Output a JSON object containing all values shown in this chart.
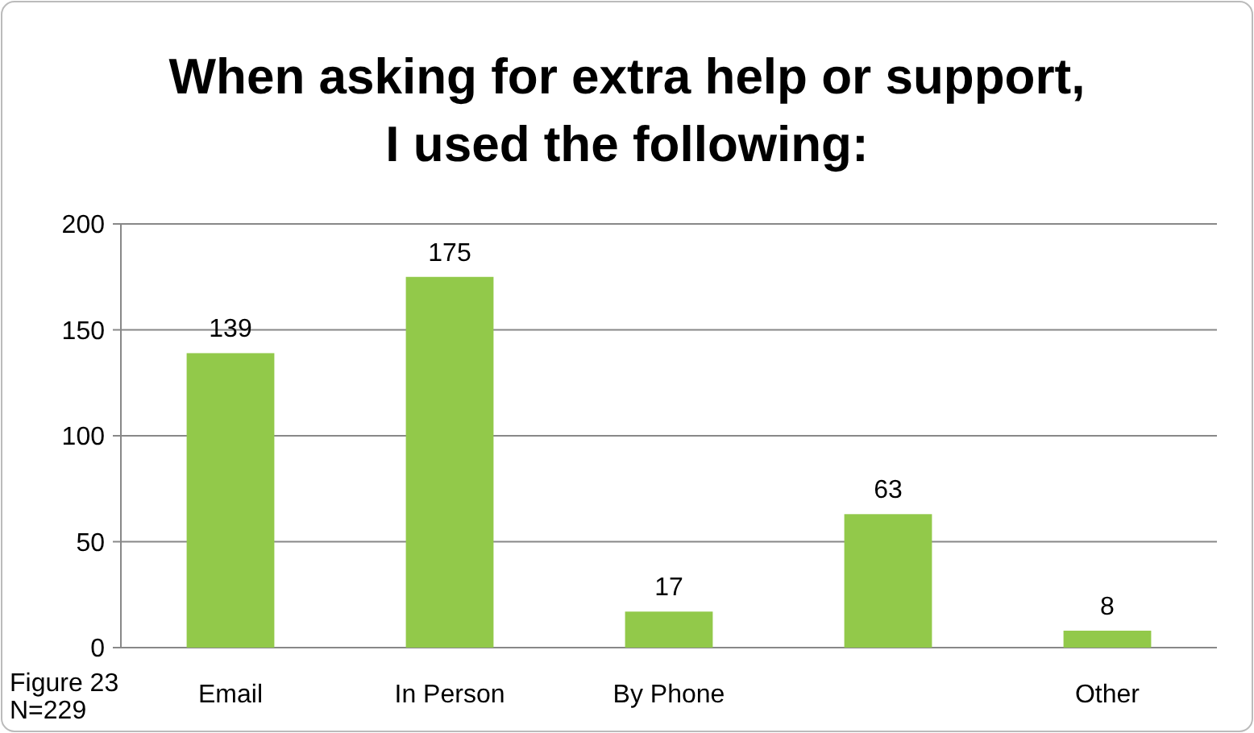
{
  "chart_data": {
    "type": "bar",
    "title": "When asking for extra help or support,\nI used the following:",
    "categories": [
      "Email",
      "In Person",
      "By Phone",
      null,
      "Other"
    ],
    "values": [
      139,
      175,
      17,
      63,
      8
    ],
    "color": "#92c94a",
    "ylim": [
      0,
      200
    ],
    "yticks": [
      0,
      50,
      100,
      150,
      200
    ],
    "grid": "y",
    "data_labels": true,
    "annotations": [
      "Figure 23",
      "N=229"
    ]
  }
}
